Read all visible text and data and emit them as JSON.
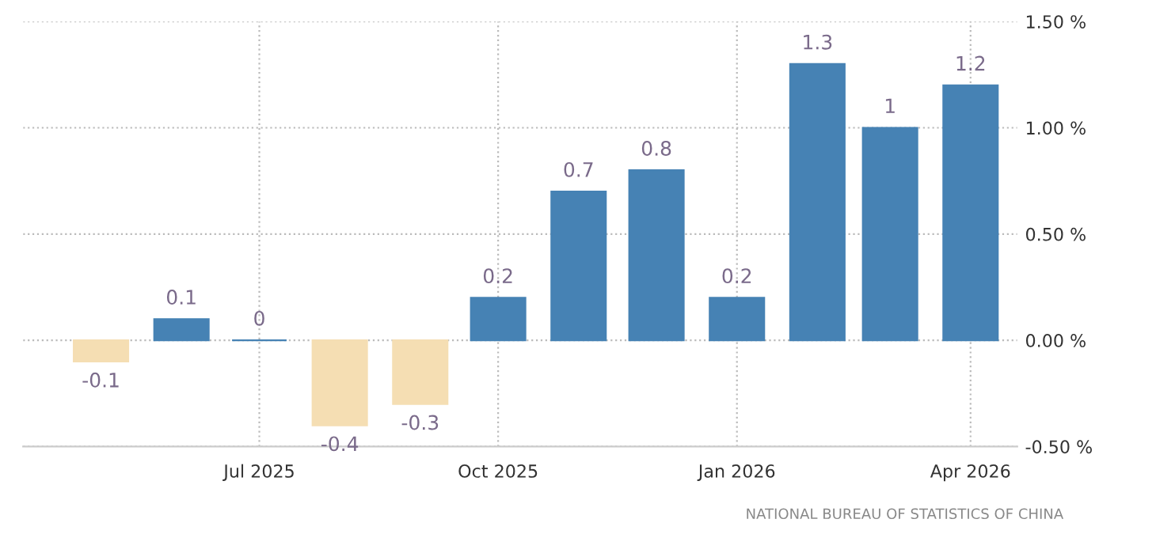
{
  "chart_data": {
    "type": "bar",
    "x": [
      "2025-05",
      "2025-06",
      "2025-07",
      "2025-08",
      "2025-09",
      "2025-10",
      "2025-11",
      "2025-12",
      "2026-01",
      "2026-02",
      "2026-03",
      "2026-04"
    ],
    "values": [
      -0.1,
      0.1,
      0,
      -0.4,
      -0.3,
      0.2,
      0.7,
      0.8,
      0.2,
      1.3,
      1,
      1.2
    ],
    "colors": [
      "#f5deb3",
      "#4682b4",
      "#4682b4",
      "#f5deb3",
      "#f5deb3",
      "#4682b4",
      "#4682b4",
      "#4682b4",
      "#4682b4",
      "#4682b4",
      "#4682b4",
      "#4682b4"
    ],
    "data_labels": true,
    "xlim": [
      "2025-04-01",
      "2026-04-19"
    ],
    "xticks": [
      {
        "value": "2025-07-01",
        "label": "Jul 2025"
      },
      {
        "value": "2025-10-01",
        "label": "Oct 2025"
      },
      {
        "value": "2026-01-01",
        "label": "Jan 2026"
      },
      {
        "value": "2026-04-01",
        "label": "Apr 2026"
      }
    ],
    "ylim": [
      -0.5,
      1.5
    ],
    "yticks": [
      {
        "value": -0.5,
        "label": "-0.50 %"
      },
      {
        "value": 0,
        "label": "0.00 %"
      },
      {
        "value": 0.5,
        "label": "0.50 %"
      },
      {
        "value": 1,
        "label": "1.00 %"
      },
      {
        "value": 1.5,
        "label": "1.50 %"
      }
    ],
    "grid": true,
    "annotations": [
      "NATIONAL BUREAU OF STATISTICS OF CHINA"
    ]
  }
}
